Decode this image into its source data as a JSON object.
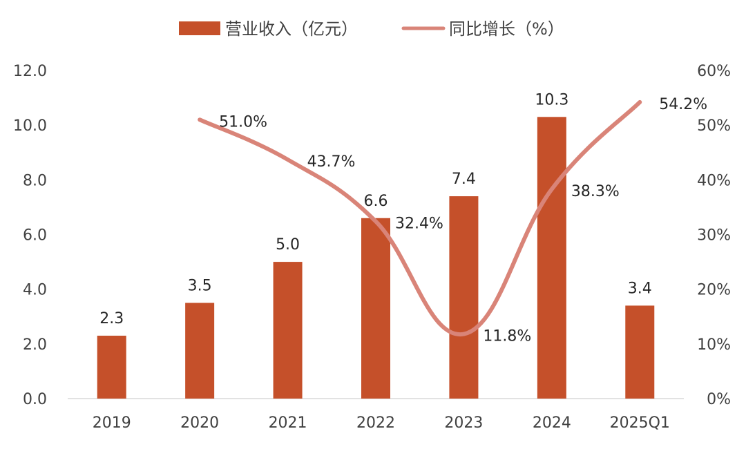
{
  "chart_data": {
    "type": "bar",
    "categories": [
      "2019",
      "2020",
      "2021",
      "2022",
      "2023",
      "2024",
      "2025Q1"
    ],
    "series": [
      {
        "name": "营业收入（亿元）",
        "type": "bar",
        "axis": "left",
        "values": [
          2.3,
          3.5,
          5.0,
          6.6,
          7.4,
          10.3,
          3.4
        ],
        "labels": [
          "2.3",
          "3.5",
          "5.0",
          "6.6",
          "7.4",
          "10.3",
          "3.4"
        ]
      },
      {
        "name": "同比增长（%）",
        "type": "line",
        "axis": "right",
        "values": [
          null,
          51.0,
          43.7,
          32.4,
          11.8,
          38.3,
          54.2
        ],
        "labels": [
          "",
          "51.0%",
          "43.7%",
          "32.4%",
          "11.8%",
          "38.3%",
          "54.2%"
        ]
      }
    ],
    "y_left": {
      "ylim": [
        0,
        12
      ],
      "ticks": [
        "0.0",
        "2.0",
        "4.0",
        "6.0",
        "8.0",
        "10.0",
        "12.0"
      ]
    },
    "y_right": {
      "ylim": [
        0,
        60
      ],
      "ticks": [
        "0%",
        "10%",
        "20%",
        "30%",
        "40%",
        "50%",
        "60%"
      ]
    },
    "legend": "top-center",
    "grid": false,
    "colors": {
      "bar": "#c5502a",
      "line": "#d98478",
      "axis": "#d9d9d9"
    }
  }
}
